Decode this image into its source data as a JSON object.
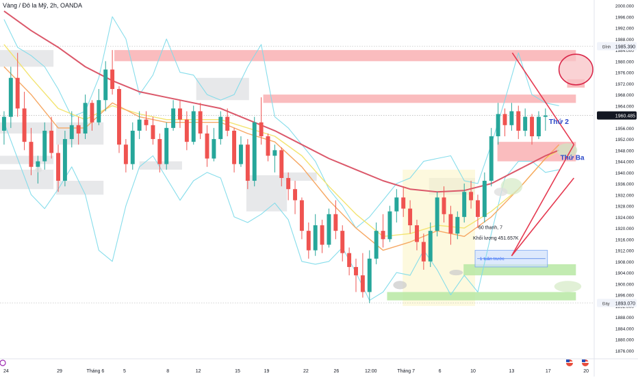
{
  "header": {
    "symbol_title": "Vàng / Đô la Mỹ, 2h, OANDA"
  },
  "colors": {
    "up": "#26a69a",
    "down": "#ef5350",
    "bollinger": "#7fdbea",
    "ma_long": "#d94f62",
    "ma_mid": "#f5a35c",
    "ma_short": "#f2e36a",
    "trendline": "#e53950",
    "supply_zone": "#f8a5a8",
    "demand_zone": "#b7e8a3",
    "range_box": "#e3e4e6",
    "price_tag_bg": "#131722"
  },
  "icons": {
    "tradingview_logo": "tv-logo-icon",
    "flag_us_1": "flag-us-icon",
    "flag_us_2": "flag-us-icon"
  },
  "annotations": {
    "tuesday_label": "Thứ Ba",
    "wednesday_label": "Thứ 2",
    "bars_info_line1": "60 thanh, 7",
    "bars_info_line2": "Khối lượng 451.657K",
    "week_ago": "1 tuần trước"
  },
  "price_axis": {
    "current_price": "1960.485",
    "high_label": "Đỉnh",
    "high_value": "1985.390",
    "low_label": "Đáy",
    "low_value": "1893.070"
  },
  "chart_data": {
    "type": "candlestick",
    "title": "Vàng / Đô la Mỹ, 2h, OANDA",
    "interval": "2h",
    "y_range": [
      1873,
      2002
    ],
    "y_ticks": [
      "2000.000",
      "1996.000",
      "1992.000",
      "1988.000",
      "1984.000",
      "1980.000",
      "1976.000",
      "1972.000",
      "1968.000",
      "1964.000",
      "1960.000",
      "1956.000",
      "1952.000",
      "1948.000",
      "1944.000",
      "1940.000",
      "1936.000",
      "1932.000",
      "1928.000",
      "1924.000",
      "1920.000",
      "1916.000",
      "1912.000",
      "1908.000",
      "1904.000",
      "1900.000",
      "1896.000",
      "1892.000",
      "1888.000",
      "1884.000",
      "1880.000",
      "1876.000"
    ],
    "x_ticks": [
      "24",
      "29",
      "Tháng 6",
      "5",
      "8",
      "12",
      "15",
      "19",
      "22",
      "26",
      "12:00",
      "Tháng 7",
      "6",
      "10",
      "13",
      "17",
      "20"
    ],
    "x_tick_pos": [
      0.3,
      8.2,
      13.5,
      17.8,
      24.2,
      28.7,
      34.5,
      38.8,
      44.6,
      49.1,
      54.2,
      59.4,
      64.4,
      69.3,
      75.0,
      80.4,
      86.0
    ],
    "x_range": [
      -0.6,
      87.2
    ],
    "price_high": 1985.39,
    "price_low": 1893.07,
    "current_price": 1960.485,
    "candles": [
      [
        1955.0,
        1962.0,
        1950.0,
        1960.0
      ],
      [
        1960.0,
        1978.0,
        1956.0,
        1974.0
      ],
      [
        1974.0,
        1983.0,
        1960.0,
        1963.0
      ],
      [
        1963.0,
        1969.0,
        1948.0,
        1951.0
      ],
      [
        1951.0,
        1956.0,
        1939.0,
        1942.0
      ],
      [
        1942.0,
        1946.0,
        1936.0,
        1944.0
      ],
      [
        1944.0,
        1958.0,
        1941.0,
        1955.0
      ],
      [
        1955.0,
        1960.0,
        1945.0,
        1947.0
      ],
      [
        1947.0,
        1950.0,
        1933.0,
        1937.0
      ],
      [
        1937.0,
        1955.0,
        1935.0,
        1952.0
      ],
      [
        1952.0,
        1962.0,
        1949.0,
        1957.0
      ],
      [
        1957.0,
        1960.0,
        1950.0,
        1954.0
      ],
      [
        1954.0,
        1968.0,
        1952.0,
        1965.0
      ],
      [
        1965.0,
        1966.0,
        1955.0,
        1958.0
      ],
      [
        1958.0,
        1970.0,
        1957.0,
        1966.0
      ],
      [
        1966.0,
        1980.0,
        1962.0,
        1977.0
      ],
      [
        1977.0,
        1984.0,
        1968.0,
        1970.0
      ],
      [
        1970.0,
        1971.0,
        1947.0,
        1950.0
      ],
      [
        1950.0,
        1952.0,
        1940.0,
        1943.0
      ],
      [
        1943.0,
        1958.0,
        1941.0,
        1955.0
      ],
      [
        1955.0,
        1962.0,
        1952.0,
        1959.0
      ],
      [
        1959.0,
        1962.0,
        1955.0,
        1957.0
      ],
      [
        1957.0,
        1960.0,
        1950.0,
        1952.0
      ],
      [
        1952.0,
        1954.0,
        1940.0,
        1943.0
      ],
      [
        1943.0,
        1958.0,
        1941.0,
        1956.0
      ],
      [
        1956.0,
        1966.0,
        1955.0,
        1963.0
      ],
      [
        1963.0,
        1966.0,
        1956.0,
        1959.0
      ],
      [
        1959.0,
        1962.0,
        1948.0,
        1951.0
      ],
      [
        1951.0,
        1964.0,
        1950.0,
        1962.0
      ],
      [
        1962.0,
        1965.0,
        1952.0,
        1954.0
      ],
      [
        1954.0,
        1957.0,
        1942.0,
        1945.0
      ],
      [
        1945.0,
        1956.0,
        1944.0,
        1952.0
      ],
      [
        1952.0,
        1962.0,
        1950.0,
        1960.0
      ],
      [
        1960.0,
        1963.0,
        1953.0,
        1955.0
      ],
      [
        1955.0,
        1956.0,
        1940.0,
        1943.0
      ],
      [
        1943.0,
        1953.0,
        1942.0,
        1950.0
      ],
      [
        1950.0,
        1952.0,
        1934.0,
        1937.0
      ],
      [
        1937.0,
        1960.0,
        1935.0,
        1958.0
      ],
      [
        1958.0,
        1967.0,
        1950.0,
        1953.0
      ],
      [
        1953.0,
        1954.0,
        1944.0,
        1946.0
      ],
      [
        1946.0,
        1950.0,
        1940.0,
        1948.0
      ],
      [
        1948.0,
        1949.0,
        1935.0,
        1938.0
      ],
      [
        1938.0,
        1940.0,
        1930.0,
        1934.0
      ],
      [
        1934.0,
        1937.0,
        1925.0,
        1930.0
      ],
      [
        1930.0,
        1931.0,
        1916.0,
        1919.0
      ],
      [
        1919.0,
        1922.0,
        1909.0,
        1912.0
      ],
      [
        1912.0,
        1925.0,
        1910.0,
        1921.0
      ],
      [
        1921.0,
        1923.0,
        1911.0,
        1914.0
      ],
      [
        1914.0,
        1927.0,
        1913.0,
        1925.0
      ],
      [
        1925.0,
        1930.0,
        1916.0,
        1919.0
      ],
      [
        1919.0,
        1921.0,
        1908.0,
        1911.0
      ],
      [
        1911.0,
        1913.0,
        1903.0,
        1906.0
      ],
      [
        1906.0,
        1909.0,
        1897.0,
        1903.0
      ],
      [
        1903.0,
        1911.0,
        1895.0,
        1897.0
      ],
      [
        1897.0,
        1912.0,
        1893.0,
        1909.0
      ],
      [
        1909.0,
        1922.0,
        1907.0,
        1919.0
      ],
      [
        1919.0,
        1925.0,
        1913.0,
        1916.0
      ],
      [
        1916.0,
        1928.0,
        1915.0,
        1926.0
      ],
      [
        1926.0,
        1934.0,
        1922.0,
        1931.0
      ],
      [
        1931.0,
        1935.0,
        1924.0,
        1927.0
      ],
      [
        1927.0,
        1930.0,
        1918.0,
        1921.0
      ],
      [
        1921.0,
        1923.0,
        1912.0,
        1915.0
      ],
      [
        1915.0,
        1918.0,
        1905.0,
        1908.0
      ],
      [
        1908.0,
        1922.0,
        1906.0,
        1919.0
      ],
      [
        1919.0,
        1933.0,
        1917.0,
        1931.0
      ],
      [
        1931.0,
        1935.0,
        1922.0,
        1925.0
      ],
      [
        1925.0,
        1928.0,
        1914.0,
        1918.0
      ],
      [
        1918.0,
        1926.0,
        1916.0,
        1924.0
      ],
      [
        1924.0,
        1936.0,
        1922.0,
        1933.0
      ],
      [
        1933.0,
        1937.0,
        1927.0,
        1930.0
      ],
      [
        1930.0,
        1932.0,
        1920.0,
        1924.0
      ],
      [
        1924.0,
        1940.0,
        1922.0,
        1937.0
      ],
      [
        1937.0,
        1956.0,
        1935.0,
        1953.0
      ],
      [
        1953.0,
        1965.0,
        1950.0,
        1961.0
      ],
      [
        1961.0,
        1963.0,
        1953.0,
        1957.0
      ],
      [
        1957.0,
        1965.0,
        1955.0,
        1962.0
      ],
      [
        1962.0,
        1964.0,
        1952.0,
        1955.0
      ],
      [
        1955.0,
        1963.0,
        1953.0,
        1960.0
      ],
      [
        1960.0,
        1961.0,
        1950.0,
        1953.0
      ],
      [
        1953.0,
        1962.0,
        1952.0,
        1960.0
      ],
      [
        1960.0,
        1963.0,
        1955.0,
        1960.485
      ]
    ],
    "ma_long": [
      [
        0,
        1998
      ],
      [
        4,
        1991
      ],
      [
        8,
        1985
      ],
      [
        12,
        1978
      ],
      [
        16,
        1973
      ],
      [
        20,
        1969
      ],
      [
        24,
        1967
      ],
      [
        28,
        1965
      ],
      [
        32,
        1963
      ],
      [
        36,
        1959
      ],
      [
        40,
        1955
      ],
      [
        44,
        1950
      ],
      [
        48,
        1945
      ],
      [
        52,
        1941
      ],
      [
        56,
        1937
      ],
      [
        60,
        1934
      ],
      [
        64,
        1933
      ],
      [
        68,
        1933.5
      ],
      [
        72,
        1936
      ],
      [
        76,
        1941
      ],
      [
        80,
        1946
      ],
      [
        82,
        1948
      ]
    ],
    "ma_mid": [
      [
        0,
        1978
      ],
      [
        4,
        1968
      ],
      [
        8,
        1956
      ],
      [
        12,
        1956
      ],
      [
        16,
        1965
      ],
      [
        20,
        1960
      ],
      [
        24,
        1958
      ],
      [
        28,
        1958
      ],
      [
        32,
        1958
      ],
      [
        36,
        1954
      ],
      [
        40,
        1951
      ],
      [
        44,
        1942
      ],
      [
        48,
        1930
      ],
      [
        52,
        1920
      ],
      [
        56,
        1912
      ],
      [
        60,
        1915
      ],
      [
        64,
        1919
      ],
      [
        68,
        1917
      ],
      [
        72,
        1924
      ],
      [
        76,
        1934
      ],
      [
        80,
        1945
      ],
      [
        82,
        1950
      ]
    ],
    "ma_short": [
      [
        0,
        1986
      ],
      [
        4,
        1974
      ],
      [
        8,
        1963
      ],
      [
        12,
        1959
      ],
      [
        16,
        1964
      ],
      [
        20,
        1961
      ],
      [
        24,
        1959
      ],
      [
        28,
        1959
      ],
      [
        32,
        1959
      ],
      [
        36,
        1956
      ],
      [
        40,
        1953
      ],
      [
        44,
        1946
      ],
      [
        48,
        1935
      ],
      [
        52,
        1925
      ],
      [
        56,
        1917
      ],
      [
        60,
        1918
      ],
      [
        64,
        1921
      ],
      [
        68,
        1920
      ],
      [
        72,
        1926
      ],
      [
        76,
        1934
      ],
      [
        80,
        1945
      ],
      [
        82,
        1948
      ]
    ],
    "boll_upper": [
      [
        0,
        1995
      ],
      [
        2,
        1985
      ],
      [
        4,
        1982
      ],
      [
        6,
        1978
      ],
      [
        8,
        1970
      ],
      [
        10,
        1960
      ],
      [
        12,
        1962
      ],
      [
        14,
        1974
      ],
      [
        16,
        1996
      ],
      [
        18,
        1988
      ],
      [
        20,
        1968
      ],
      [
        22,
        1975
      ],
      [
        24,
        1988
      ],
      [
        26,
        1976
      ],
      [
        28,
        1975
      ],
      [
        30,
        1968
      ],
      [
        32,
        1966
      ],
      [
        34,
        1968
      ],
      [
        36,
        1978
      ],
      [
        38,
        1986
      ],
      [
        40,
        1960
      ],
      [
        42,
        1956
      ],
      [
        44,
        1950
      ],
      [
        46,
        1944
      ],
      [
        48,
        1934
      ],
      [
        50,
        1928
      ],
      [
        52,
        1920
      ],
      [
        54,
        1924
      ],
      [
        56,
        1930
      ],
      [
        58,
        1936
      ],
      [
        60,
        1938
      ],
      [
        62,
        1944
      ],
      [
        64,
        1945
      ],
      [
        66,
        1946
      ],
      [
        68,
        1937
      ],
      [
        70,
        1936
      ],
      [
        72,
        1950
      ],
      [
        74,
        1966
      ],
      [
        76,
        1983
      ],
      [
        78,
        1968
      ],
      [
        80,
        1965
      ],
      [
        82,
        1964
      ]
    ],
    "boll_lower": [
      [
        0,
        1958
      ],
      [
        2,
        1945
      ],
      [
        4,
        1932
      ],
      [
        6,
        1927
      ],
      [
        8,
        1934
      ],
      [
        10,
        1942
      ],
      [
        12,
        1932
      ],
      [
        14,
        1912
      ],
      [
        16,
        1908
      ],
      [
        18,
        1928
      ],
      [
        20,
        1942
      ],
      [
        22,
        1946
      ],
      [
        24,
        1938
      ],
      [
        26,
        1930
      ],
      [
        28,
        1937
      ],
      [
        30,
        1940
      ],
      [
        32,
        1938
      ],
      [
        34,
        1924
      ],
      [
        36,
        1922
      ],
      [
        38,
        1925
      ],
      [
        40,
        1929
      ],
      [
        42,
        1923
      ],
      [
        44,
        1908
      ],
      [
        46,
        1907
      ],
      [
        48,
        1908
      ],
      [
        50,
        1913
      ],
      [
        52,
        1904
      ],
      [
        54,
        1894
      ],
      [
        56,
        1897
      ],
      [
        58,
        1904
      ],
      [
        60,
        1903
      ],
      [
        62,
        1912
      ],
      [
        64,
        1905
      ],
      [
        66,
        1896
      ],
      [
        68,
        1903
      ],
      [
        70,
        1897
      ],
      [
        72,
        1918
      ],
      [
        74,
        1938
      ],
      [
        76,
        1944
      ],
      [
        78,
        1944
      ],
      [
        80,
        1940
      ],
      [
        82,
        1941
      ]
    ],
    "range_boxes": [
      [
        -0.6,
        7.3,
        1984,
        1978
      ],
      [
        -0.6,
        7.3,
        1958,
        1954
      ],
      [
        -0.6,
        7.3,
        1946,
        1943
      ],
      [
        -0.6,
        7.3,
        1941,
        1934
      ],
      [
        7.7,
        14.7,
        1958,
        1950
      ],
      [
        7.7,
        14.7,
        1937,
        1932
      ],
      [
        20.0,
        26.3,
        1944,
        1941
      ],
      [
        28.4,
        36.2,
        1974,
        1966
      ],
      [
        35.8,
        41.8,
        1939,
        1926
      ],
      [
        41.2,
        46.2,
        1940,
        1937
      ],
      [
        62.8,
        69.6,
        1938,
        1932
      ]
    ],
    "supply_zones": [
      [
        16.3,
        84.5,
        1984,
        1980
      ],
      [
        38.3,
        84.5,
        1968,
        1965
      ],
      [
        72.9,
        84.5,
        1951,
        1944
      ],
      [
        83.2,
        85.8,
        1973.5,
        1970.5
      ]
    ],
    "demand_zones": [
      [
        56.6,
        84.5,
        1897,
        1894
      ],
      [
        67.9,
        84.5,
        1907,
        1903
      ]
    ],
    "consolidation_box": [
      58.9,
      69.6,
      1941,
      1892
    ],
    "measure_box": [
      69.6,
      80.3,
      1912,
      1906
    ],
    "trendlines": [
      [
        [
          75.1,
          1983
        ],
        [
          84.2,
          1950
        ]
      ],
      [
        [
          84.2,
          1950
        ],
        [
          75.0,
          1910
        ]
      ],
      [
        [
          75.0,
          1910
        ],
        [
          84.2,
          1938
        ]
      ]
    ],
    "highlight_ellipses": [
      [
        84.5,
        1977,
        2.5,
        5.5,
        "#f8c3c5"
      ],
      [
        83.2,
        1948,
        1.5,
        2.5,
        "#cfe6c3"
      ],
      [
        58.5,
        1899.5,
        1.0,
        1.5,
        "#cccccc"
      ],
      [
        66.8,
        1904,
        1.0,
        1.0,
        "#cccccc"
      ],
      [
        75.0,
        1935,
        1.6,
        3.0,
        "#d7ebc8"
      ],
      [
        83.3,
        1899,
        2.0,
        2.0,
        "#d7ebc8"
      ],
      [
        5.1,
        1941,
        0.5,
        1.0,
        "#dddddd"
      ],
      [
        73.4,
        1933,
        1.0,
        1.5,
        "#dddddd"
      ]
    ]
  }
}
